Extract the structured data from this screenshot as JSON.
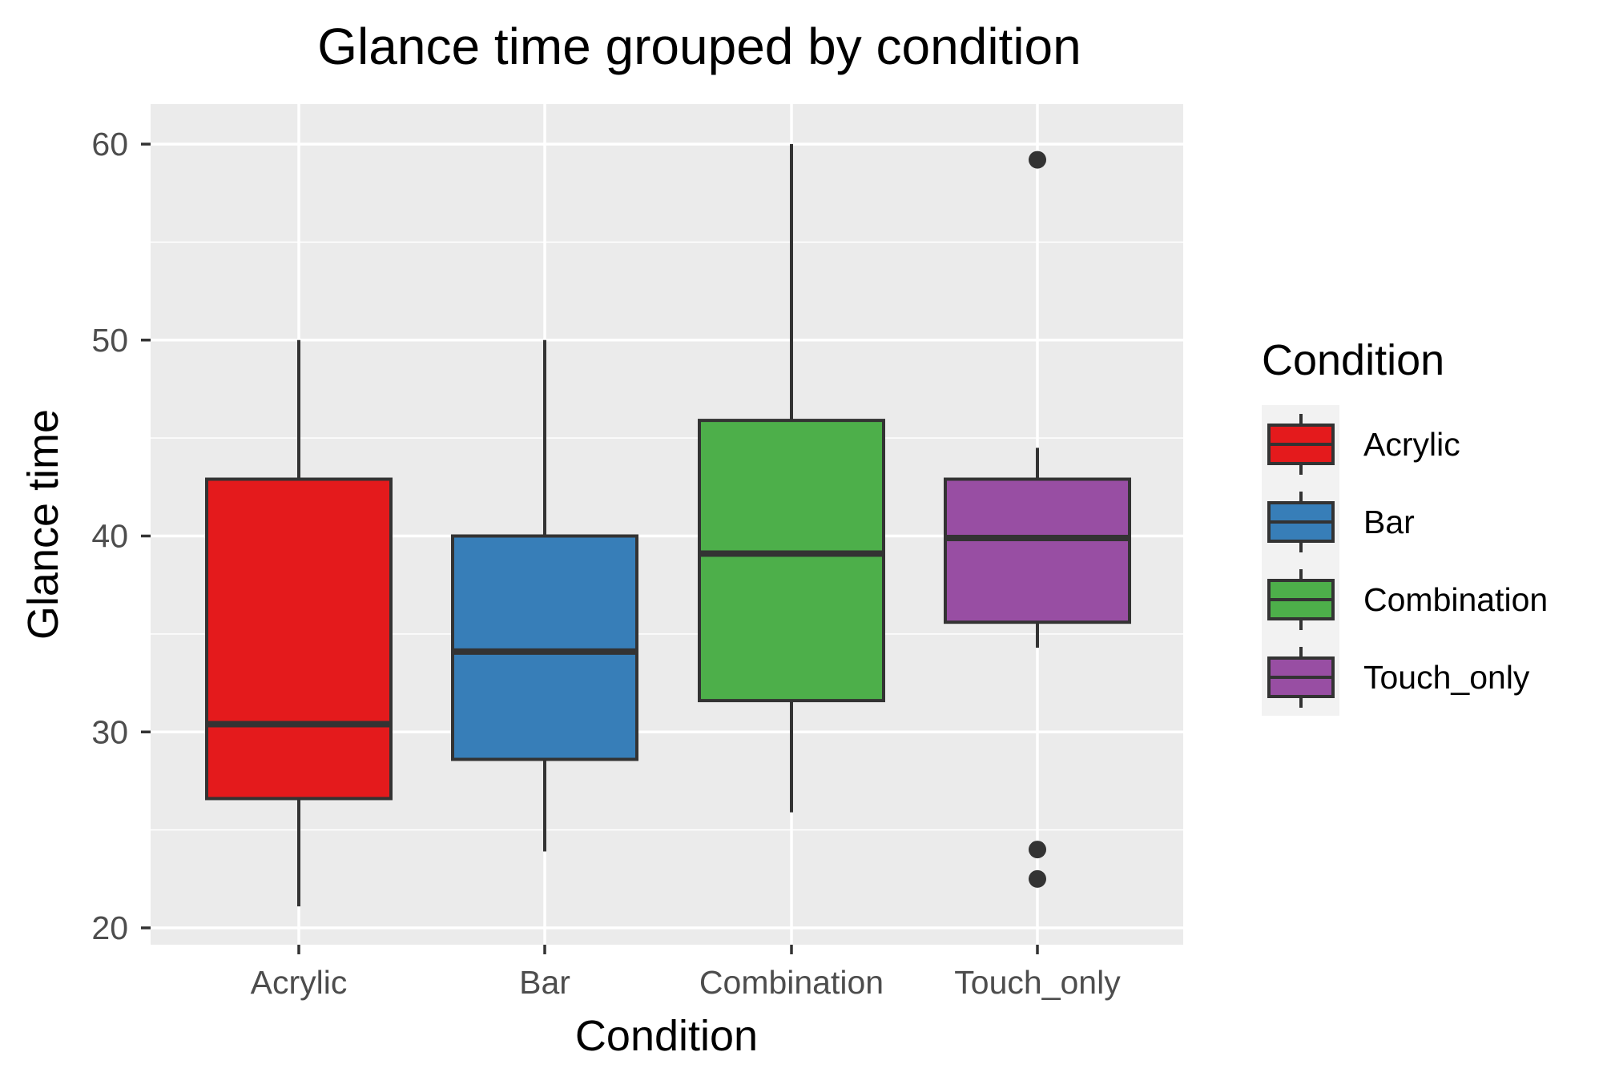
{
  "chart_data": {
    "type": "box",
    "title": "Glance time grouped by condition",
    "xlabel": "Condition",
    "ylabel": "Glance time",
    "ylim": [
      19,
      62
    ],
    "y_ticks": [
      20,
      30,
      40,
      50,
      60
    ],
    "y_tick_labels": [
      "20",
      "30",
      "40",
      "50",
      "60"
    ],
    "categories": [
      "Acrylic",
      "Bar",
      "Combination",
      "Touch_only"
    ],
    "boxes": [
      {
        "category": "Acrylic",
        "whisker_low": 21.1,
        "q1": 26.6,
        "median": 30.4,
        "q3": 42.9,
        "whisker_high": 50.0,
        "outliers": []
      },
      {
        "category": "Bar",
        "whisker_low": 23.9,
        "q1": 28.6,
        "median": 34.1,
        "q3": 40.0,
        "whisker_high": 50.0,
        "outliers": []
      },
      {
        "category": "Combination",
        "whisker_low": 25.9,
        "q1": 31.6,
        "median": 39.1,
        "q3": 45.9,
        "whisker_high": 60.0,
        "outliers": []
      },
      {
        "category": "Touch_only",
        "whisker_low": 34.3,
        "q1": 35.6,
        "median": 39.9,
        "q3": 42.9,
        "whisker_high": 44.5,
        "outliers": [
          59.2,
          24.0,
          22.5
        ]
      }
    ],
    "legend": {
      "title": "Condition",
      "placement": "right",
      "entries": [
        "Acrylic",
        "Bar",
        "Combination",
        "Touch_only"
      ]
    },
    "colors": {
      "Acrylic": "#e41a1c",
      "Bar": "#377eb8",
      "Combination": "#4daf4a",
      "Touch_only": "#984ea3",
      "panel_background": "#ebebeb",
      "gridline": "#ffffff",
      "box_outline": "#333333"
    },
    "grid": true
  }
}
